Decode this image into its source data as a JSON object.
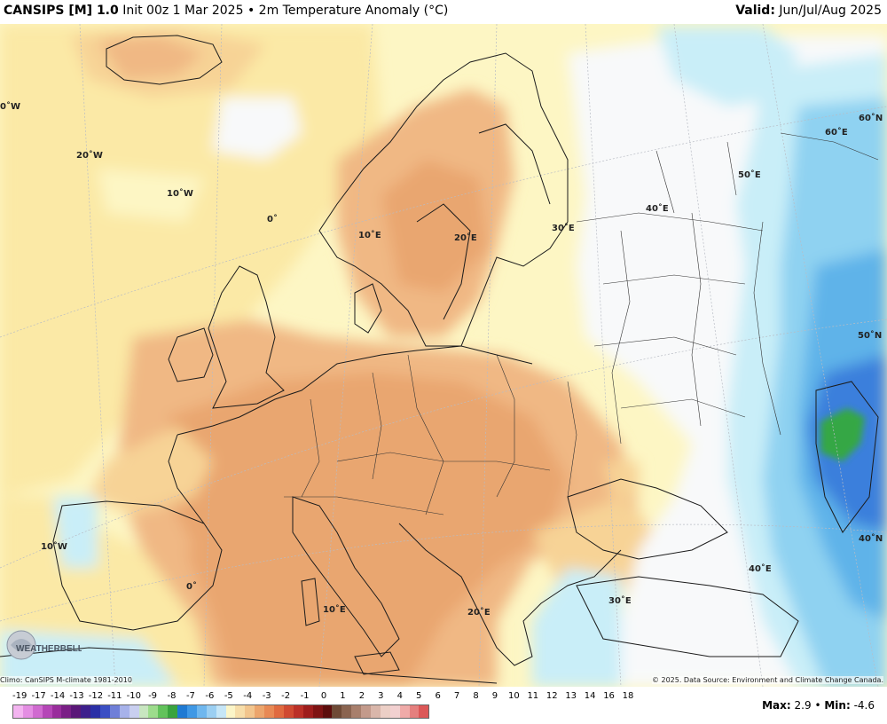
{
  "header": {
    "model": "CANSIPS [M] 1.0",
    "init": "Init 00z 1 Mar 2025",
    "separator": "•",
    "field": "2m Temperature Anomaly (°C)",
    "valid_label": "Valid:",
    "valid_value": "Jun/Jul/Aug 2025"
  },
  "map": {
    "lon_labels": [
      "0˚W",
      "20˚W",
      "10˚W",
      "0˚",
      "10˚E",
      "20˚E",
      "30˚E",
      "40˚E",
      "50˚E",
      "60˚E",
      "60˚N",
      "50˚N",
      "40˚N",
      "10˚W",
      "0˚",
      "10˚E",
      "20˚E",
      "30˚E",
      "40˚E"
    ],
    "colors": {
      "very_light_yellow": "#fdf6c4",
      "light_yellow": "#fbe9a6",
      "light_orange": "#f7d396",
      "orange": "#f0b884",
      "dark_orange": "#e9a66f",
      "white": "#f8f9fa",
      "light_blue": "#c9eef8",
      "blue": "#8fd2f1",
      "medium_blue": "#5fb3e9",
      "deep_blue": "#3b7fdc",
      "green": "#36a744"
    }
  },
  "credits": {
    "climo": "Climo: CanSIPS M-climate 1981-2010",
    "source": "© 2025. Data Source: Environment and Climate Change Canada.",
    "logo": "WEATHERBELL"
  },
  "legend": {
    "ticks": [
      "-19",
      "-17",
      "-14",
      "-13",
      "-12",
      "-11",
      "-10",
      "-9",
      "-8",
      "-7",
      "-6",
      "-5",
      "-4",
      "-3",
      "-2",
      "-1",
      "0",
      "1",
      "2",
      "3",
      "4",
      "5",
      "6",
      "7",
      "8",
      "9",
      "10",
      "11",
      "12",
      "13",
      "14",
      "16",
      "18"
    ],
    "colors": [
      "#f3b4f0",
      "#e48ee3",
      "#d06ad0",
      "#b546b7",
      "#992d9c",
      "#7a1f86",
      "#5a1778",
      "#3d1f8c",
      "#2a2fa6",
      "#3b4fc4",
      "#6f7fd8",
      "#a7b2ea",
      "#c9cff0",
      "#c8e6c0",
      "#9ddc8c",
      "#62c25b",
      "#39a33e",
      "#1f7ad3",
      "#3f98e5",
      "#6fb7ee",
      "#9bcff2",
      "#c6e6f7",
      "#fbf5c8",
      "#f7deaa",
      "#f2c58d",
      "#eca56c",
      "#e88954",
      "#e06a3f",
      "#d04a31",
      "#bb3027",
      "#9e1d1c",
      "#7e1313",
      "#5c0d0c",
      "#6e4a36",
      "#8a6450",
      "#a87f6c",
      "#c39a8b",
      "#d9b6aa",
      "#eccfc6",
      "#f2d0d0",
      "#efaaa8",
      "#e57f7e",
      "#dc5757"
    ],
    "max_label": "Max:",
    "max_value": "2.9",
    "bullet": "•",
    "min_label": "Min:",
    "min_value": "-4.6"
  }
}
